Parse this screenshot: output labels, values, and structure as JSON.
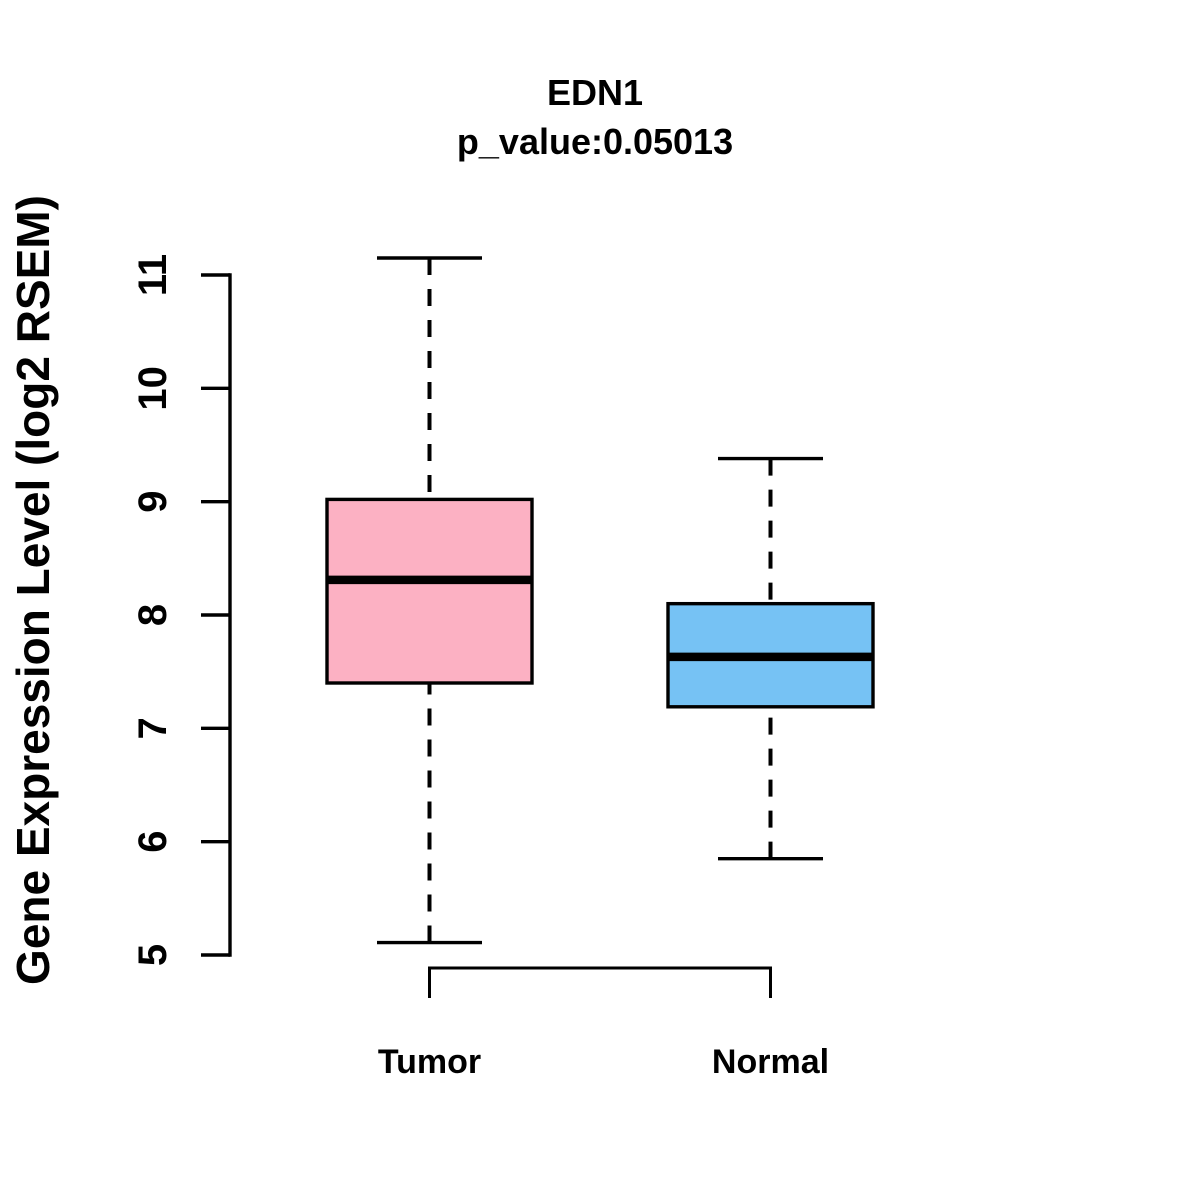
{
  "chart_data": {
    "type": "boxplot",
    "title": "EDN1",
    "subtitle": "p_value:0.05013",
    "ylabel": "Gene Expression Level (log2 RSEM)",
    "ylim": [
      5,
      11
    ],
    "yticks": [
      5,
      6,
      7,
      8,
      9,
      10,
      11
    ],
    "grid": "off",
    "categories": [
      "Tumor",
      "Normal"
    ],
    "series": [
      {
        "name": "Tumor",
        "color": "#FCB1C3",
        "border_color": "#000000",
        "lower_whisker": 5.11,
        "q1": 7.4,
        "median": 8.31,
        "q3": 9.02,
        "upper_whisker": 11.15
      },
      {
        "name": "Normal",
        "color": "#76C2F4",
        "border_color": "#000000",
        "lower_whisker": 5.85,
        "q1": 7.19,
        "median": 7.63,
        "q3": 8.1,
        "upper_whisker": 9.38
      }
    ],
    "significance_bracket": {
      "from": "Tumor",
      "to": "Normal"
    },
    "colors": {
      "axis": "#000000",
      "text": "#000000",
      "background": "#ffffff"
    }
  }
}
